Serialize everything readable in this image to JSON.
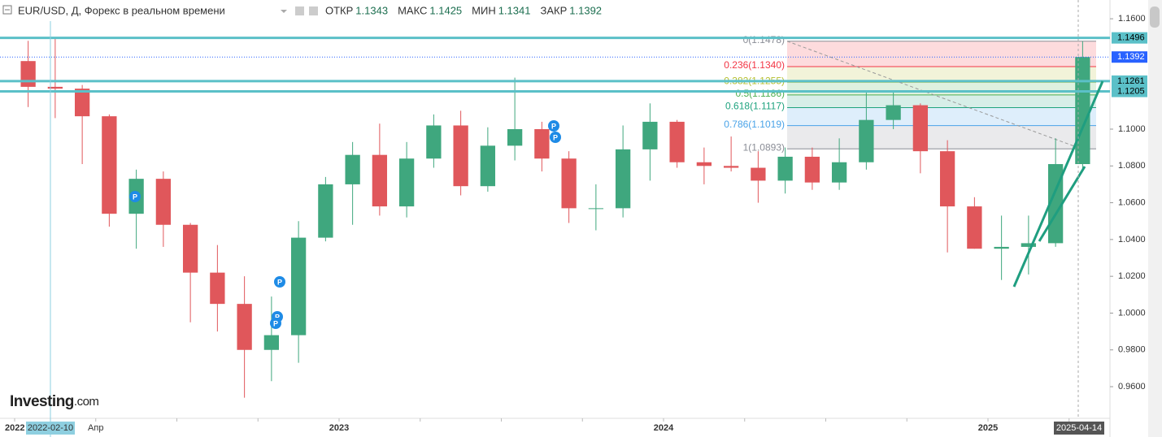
{
  "header": {
    "symbol": "EUR/USD, Д, Форекс в реальном времени",
    "ohlc": [
      {
        "label": "ОТКР",
        "value": 1.1343
      },
      {
        "label": "МАКС",
        "value": 1.1425
      },
      {
        "label": "МИН",
        "value": 1.1341
      },
      {
        "label": "ЗАКР",
        "value": 1.1392
      }
    ]
  },
  "logo": {
    "text": "Investing",
    "suffix": ".com"
  },
  "event_marker_label": "P",
  "chart_data": {
    "type": "candlestick",
    "categories": [
      "2022",
      null,
      null,
      "Апр",
      null,
      null,
      null,
      null,
      null,
      null,
      null,
      null,
      "2023",
      null,
      null,
      null,
      null,
      null,
      null,
      null,
      null,
      null,
      null,
      null,
      "2024",
      null,
      null,
      null,
      null,
      null,
      null,
      null,
      null,
      null,
      null,
      null,
      "2025",
      null,
      null,
      null
    ],
    "open": [
      1.137,
      1.123,
      1.122,
      1.107,
      1.054,
      1.073,
      1.048,
      1.022,
      1.005,
      0.98,
      0.988,
      1.041,
      1.07,
      1.086,
      1.058,
      1.084,
      1.102,
      1.069,
      1.091,
      1.1,
      1.084,
      1.057,
      1.057,
      1.089,
      1.104,
      1.082,
      1.08,
      1.079,
      1.072,
      1.085,
      1.071,
      1.082,
      1.105,
      1.113,
      1.088,
      1.058,
      1.035,
      1.036,
      1.038,
      1.081
    ],
    "high": [
      1.148,
      1.149,
      1.124,
      1.108,
      1.078,
      1.077,
      1.049,
      1.037,
      1.02,
      1.009,
      1.05,
      1.074,
      1.093,
      1.103,
      1.093,
      1.108,
      1.11,
      1.101,
      1.128,
      1.104,
      1.088,
      1.07,
      1.102,
      1.114,
      1.105,
      1.09,
      1.096,
      1.088,
      1.09,
      1.09,
      1.095,
      1.12,
      1.121,
      1.114,
      1.094,
      1.063,
      1.053,
      1.053,
      1.095,
      1.1478
    ],
    "low": [
      1.112,
      1.106,
      1.081,
      1.047,
      1.035,
      1.036,
      0.995,
      0.99,
      0.954,
      0.963,
      0.973,
      1.039,
      1.048,
      1.053,
      1.052,
      1.079,
      1.064,
      1.066,
      1.083,
      1.077,
      1.049,
      1.045,
      1.052,
      1.072,
      1.079,
      1.07,
      1.077,
      1.06,
      1.065,
      1.067,
      1.067,
      1.078,
      1.1,
      1.076,
      1.033,
      1.035,
      1.018,
      1.021,
      1.036,
      1.077
    ],
    "close": [
      1.123,
      1.122,
      1.107,
      1.054,
      1.073,
      1.048,
      1.022,
      1.005,
      0.98,
      0.988,
      1.041,
      1.07,
      1.086,
      1.058,
      1.084,
      1.102,
      1.069,
      1.091,
      1.1,
      1.084,
      1.057,
      1.057,
      1.089,
      1.104,
      1.082,
      1.08,
      1.079,
      1.072,
      1.085,
      1.071,
      1.082,
      1.105,
      1.113,
      1.088,
      1.058,
      1.035,
      1.036,
      1.038,
      1.081,
      1.1392
    ],
    "up_color": "#3fa77e",
    "down_color": "#e0575b",
    "ylim": [
      0.9428,
      1.1702
    ],
    "yticks": [
      {
        "value": 1.16,
        "label": "1.1600"
      },
      {
        "value": 1.1,
        "label": "1.1000"
      },
      {
        "value": 1.08,
        "label": "1.0800"
      },
      {
        "value": 1.06,
        "label": "1.0600"
      },
      {
        "value": 1.04,
        "label": "1.0400"
      },
      {
        "value": 1.02,
        "label": "1.0200"
      },
      {
        "value": 1.0,
        "label": "1.0000"
      },
      {
        "value": 0.98,
        "label": "0.9800"
      },
      {
        "value": 0.96,
        "label": "0.9600"
      }
    ],
    "levels": [
      {
        "value": 1.1496,
        "color": "#5bc0c8"
      },
      {
        "value": 1.1261,
        "color": "#5bc0c8"
      },
      {
        "value": 1.1205,
        "color": "#5bc0c8"
      }
    ],
    "current_price": {
      "value": 1.1392,
      "color": "#2962ff"
    },
    "fib_levels": [
      {
        "price": 1.1478,
        "label": "0(1.1478)",
        "color": "#8a8d96"
      },
      {
        "price": 1.134,
        "label": "0.236(1.1340)",
        "color": "#f23645"
      },
      {
        "price": 1.1255,
        "label": "0.382(1.1255)",
        "color": "#b5bf2e"
      },
      {
        "price": 1.1186,
        "label": "0.5(1.1186)",
        "color": "#4caf50"
      },
      {
        "price": 1.1117,
        "label": "0.618(1.1117)",
        "color": "#1fa37f"
      },
      {
        "price": 1.1019,
        "label": "0.786(1.1019)",
        "color": "#4aa3e8"
      },
      {
        "price": 1.0893,
        "label": "1(1.0893)",
        "color": "#8a8d96"
      }
    ],
    "crosshair_date": "2022-02-10",
    "last_date": "2025-04-14"
  }
}
